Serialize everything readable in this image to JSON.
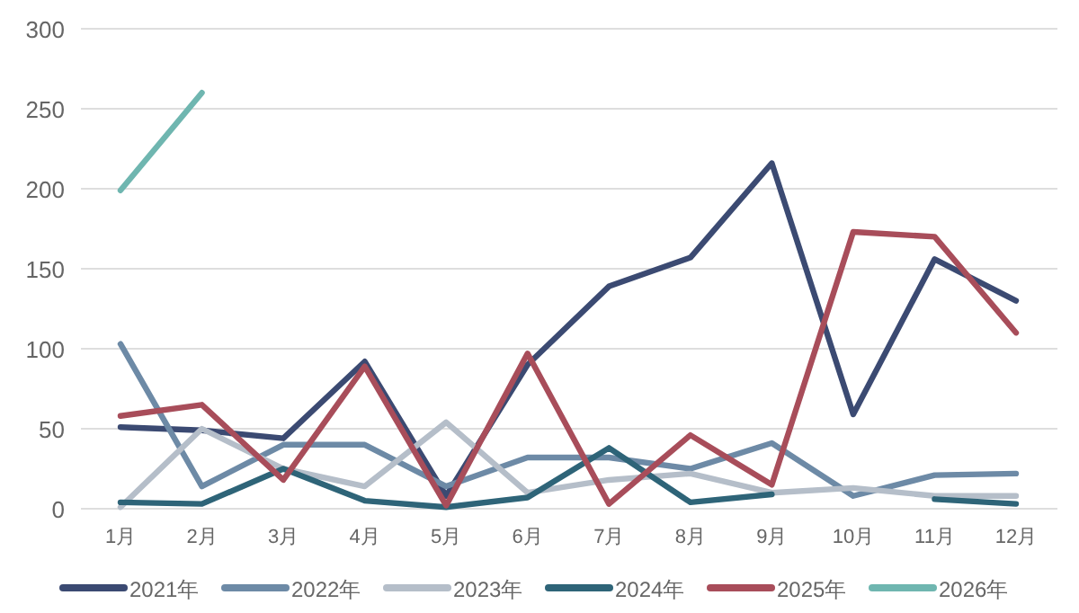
{
  "chart_data": {
    "type": "line",
    "categories": [
      "1月",
      "2月",
      "3月",
      "4月",
      "5月",
      "6月",
      "7月",
      "8月",
      "9月",
      "10月",
      "11月",
      "12月"
    ],
    "series": [
      {
        "name": "2021年",
        "color": "#3b4a72",
        "values": [
          51,
          49,
          44,
          92,
          8,
          90,
          139,
          157,
          216,
          59,
          156,
          130
        ]
      },
      {
        "name": "2022年",
        "color": "#6d8aa6",
        "values": [
          103,
          14,
          40,
          40,
          14,
          32,
          32,
          25,
          41,
          8,
          21,
          22
        ]
      },
      {
        "name": "2023年",
        "color": "#b5bec9",
        "values": [
          1,
          50,
          25,
          14,
          54,
          10,
          18,
          22,
          10,
          13,
          8,
          8
        ]
      },
      {
        "name": "2024年",
        "color": "#2e6478",
        "values": [
          4,
          3,
          25,
          5,
          1,
          7,
          38,
          4,
          9,
          null,
          6,
          3
        ]
      },
      {
        "name": "2025年",
        "color": "#a84d5a",
        "values": [
          58,
          65,
          18,
          89,
          2,
          97,
          3,
          46,
          15,
          173,
          170,
          110
        ]
      },
      {
        "name": "2026年",
        "color": "#6fb6b0",
        "values": [
          199,
          260,
          null,
          null,
          null,
          null,
          null,
          null,
          null,
          null,
          null,
          null
        ]
      }
    ],
    "ylim": [
      0,
      300
    ],
    "yticks": [
      0,
      50,
      100,
      150,
      200,
      250,
      300
    ],
    "grid": "y",
    "legend": "bottom",
    "marker": "none",
    "line_style": "solid"
  }
}
